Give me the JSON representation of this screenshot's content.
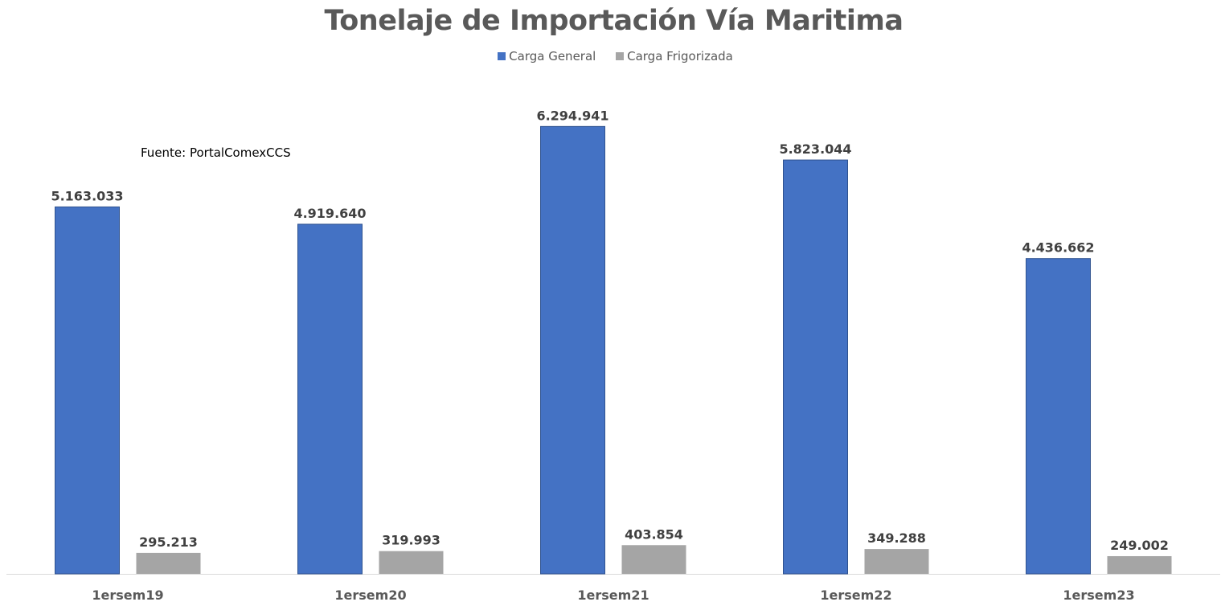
{
  "chart_data": {
    "type": "bar",
    "title": "Tonelaje de Importación Vía Maritima",
    "annotation": "Fuente: PortalComexCCS",
    "categories": [
      "1ersem19",
      "1ersem20",
      "1ersem21",
      "1ersem22",
      "1ersem23"
    ],
    "series": [
      {
        "name": "Carga General",
        "color": "#4472C4",
        "values": [
          5163033,
          4919640,
          6294941,
          5823044,
          4436662
        ],
        "labels": [
          "5.163.033",
          "4.919.640",
          "6.294.941",
          "5.823.044",
          "4.436.662"
        ]
      },
      {
        "name": "Carga Frigorizada",
        "color": "#A5A5A5",
        "values": [
          295213,
          319993,
          403854,
          349288,
          249002
        ],
        "labels": [
          "295.213",
          "319.993",
          "403.854",
          "349.288",
          "249.002"
        ]
      }
    ],
    "xlabel": "",
    "ylabel": "",
    "ylim": [
      0,
      7000000
    ],
    "grid": false,
    "legend": "top-center"
  }
}
